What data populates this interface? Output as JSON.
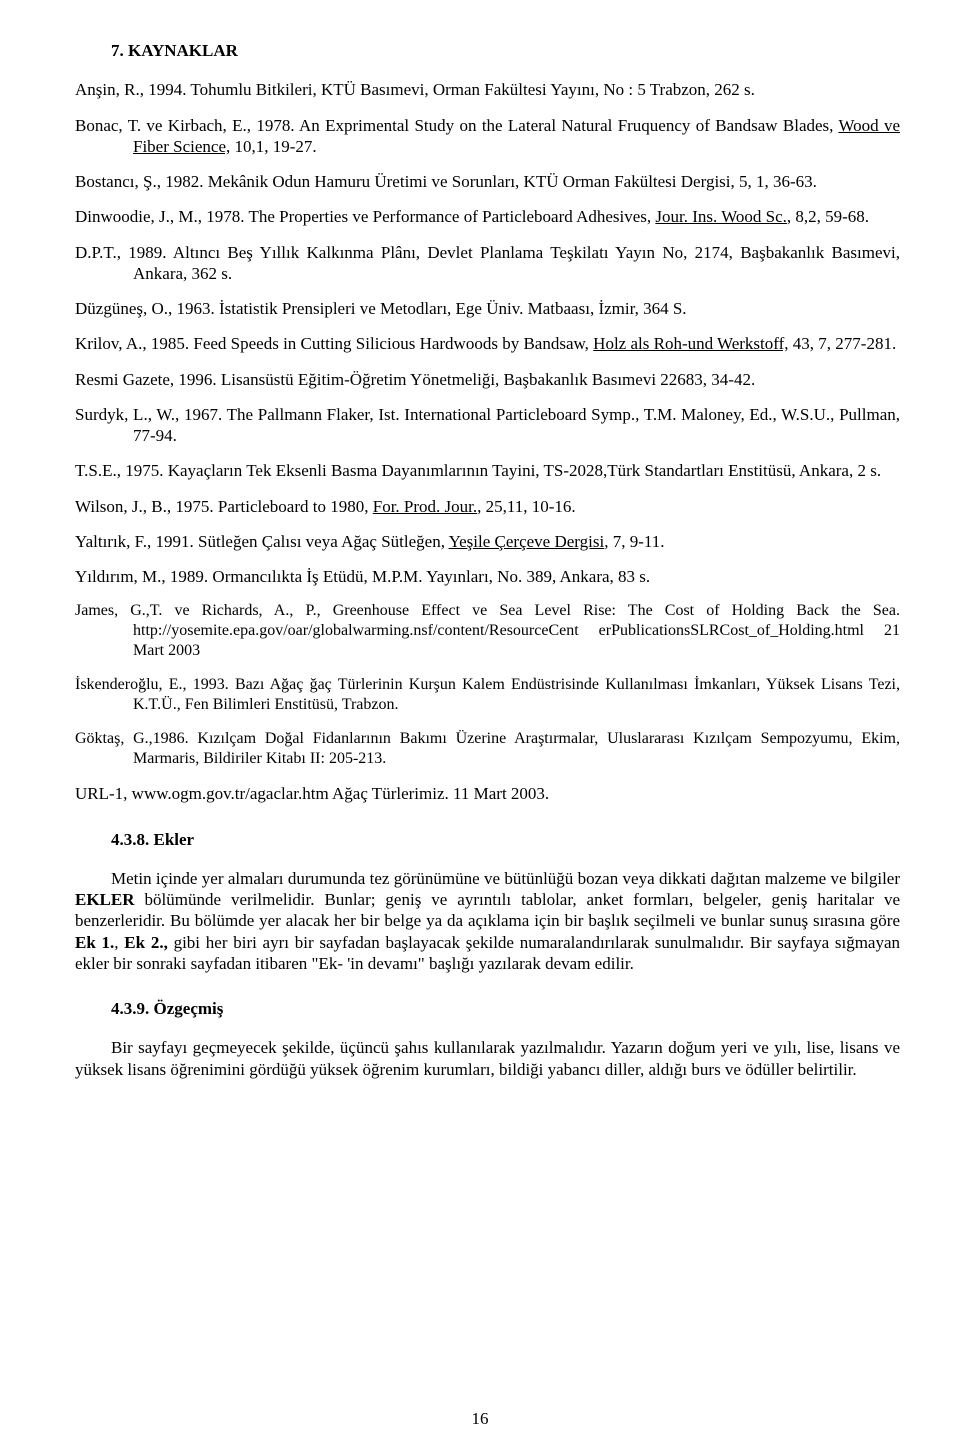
{
  "heading": "7. KAYNAKLAR",
  "refs": [
    {
      "pre": "Anşin, R., 1994. Tohumlu Bitkileri, KTÜ Basımevi, Orman Fakültesi Yayını, No : 5 Trabzon, 262 s."
    },
    {
      "pre": "Bonac, T. ve Kirbach, E., 1978. An Exprimental Study on the Lateral Natural Fruquency of Bandsaw Blades, ",
      "u": "Wood ve Fiber Science,",
      "post": " 10,1, 19-27."
    },
    {
      "pre": "Bostancı, Ş., 1982. Mekânik Odun Hamuru Üretimi ve Sorunları, KTÜ Orman Fakültesi Dergisi, 5, 1, 36-63."
    },
    {
      "pre": "Dinwoodie, J., M., 1978. The Properties ve Performance of Particleboard Adhesives, ",
      "u": "Jour. Ins. Wood Sc.",
      "post": ", 8,2, 59-68."
    },
    {
      "pre": "D.P.T., 1989. Altıncı Beş Yıllık Kalkınma Plânı, Devlet Planlama Teşkilatı Yayın No, 2174, Başbakanlık Basımevi, Ankara, 362 s."
    },
    {
      "pre": "Düzgüneş, O., 1963. İstatistik Prensipleri ve Metodları, Ege Üniv. Matbaası, İzmir, 364 S."
    },
    {
      "pre": "Krilov, A., 1985. Feed Speeds in Cutting Silicious Hardwoods by Bandsaw, ",
      "u": "Holz als Roh-und Werkstoff,",
      "post": " 43, 7, 277-281."
    },
    {
      "pre": "Resmi Gazete, 1996. Lisansüstü Eğitim-Öğretim Yönetmeliği, Başbakanlık Basımevi 22683, 34-42."
    },
    {
      "pre": "Surdyk, L., W., 1967. The Pallmann Flaker, Ist. International Particleboard Symp., T.M. Maloney, Ed., W.S.U., Pullman, 77-94."
    },
    {
      "pre": "T.S.E., 1975. Kayaçların Tek Eksenli Basma Dayanımlarının Tayini, TS-2028,Türk Standartları Enstitüsü, Ankara, 2 s."
    },
    {
      "pre": "Wilson, J., B., 1975. Particleboard to 1980, ",
      "u": "For. Prod. Jour.",
      "post": ", 25,11, 10-16."
    },
    {
      "pre": "Yaltırık, F., 1991. Sütleğen Çalısı veya Ağaç Sütleğen, ",
      "u": "Yeşile Çerçeve Dergisi",
      "post": ", 7, 9-11."
    },
    {
      "pre": "Yıldırım, M., 1989. Ormancılıkta İş Etüdü, M.P.M. Yayınları, No. 389, Ankara, 83 s."
    }
  ],
  "smallrefs": [
    {
      "pre": "James, G.,T. ve Richards, A., P., Greenhouse Effect ve Sea Level Rise: The Cost of Holding Back the Sea. http://yosemite.epa.gov/oar/globalwarming.nsf/content/ResourceCent erPublicationsSLRCost_of_Holding.html 21 Mart 2003"
    },
    {
      "pre": "İskenderoğlu, E., 1993. Bazı Ağaç ğaç Türlerinin Kurşun Kalem Endüstrisinde Kullanılması İmkanları, Yüksek Lisans Tezi, K.T.Ü., Fen Bilimleri Enstitüsü, Trabzon."
    },
    {
      "pre": "Göktaş, G.,1986. Kızılçam Doğal Fidanlarının Bakımı Üzerine Araştırmalar, Uluslararası Kızılçam Sempozyumu, Ekim, Marmaris, Bildiriler Kitabı II: 205-213."
    }
  ],
  "urlref": "URL-1, www.ogm.gov.tr/agaclar.htm Ağaç Türlerimiz. 11 Mart 2003.",
  "subheading1": "4.3.8. Ekler",
  "para1_a": "Metin içinde yer almaları durumunda tez görünümüne ve bütünlüğü bozan veya dikkati dağıtan malzeme ve bilgiler ",
  "para1_bold1": "EKLER",
  "para1_b": " bölümünde verilmelidir. Bunlar; geniş ve ayrıntılı tablolar, anket formları, belgeler, geniş haritalar ve benzerleridir. Bu bölümde yer alacak her bir belge ya da açıklama için bir başlık seçilmeli ve bunlar sunuş sırasına göre ",
  "para1_bold2": "Ek 1.",
  "para1_c": ", ",
  "para1_bold3": "Ek 2.,",
  "para1_d": " gibi her biri ayrı bir sayfadan başlayacak şekilde numaralandırılarak sunulmalıdır. Bir sayfaya sığmayan ekler bir sonraki sayfadan itibaren \"Ek- 'in devamı\" başlığı yazılarak devam edilir.",
  "subheading2": "4.3.9. Özgeçmiş",
  "para2": "Bir sayfayı geçmeyecek şekilde, üçüncü şahıs kullanılarak yazılmalıdır. Yazarın doğum yeri ve yılı, lise, lisans ve yüksek lisans öğrenimini gördüğü yüksek öğrenim kurumları, bildiği yabancı diller, aldığı burs ve ödüller belirtilir.",
  "pagenum": "16"
}
